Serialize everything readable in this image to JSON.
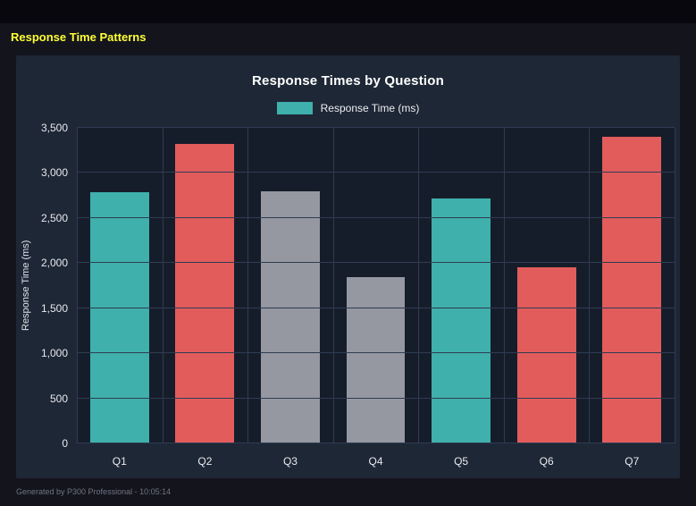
{
  "page": {
    "heading": "Response Time Patterns",
    "footer": "Generated by P300 Professional - 10:05:14"
  },
  "colors": {
    "background": "#14141d",
    "panel": "#1e2736",
    "plot_bg": "#161d2a",
    "grid": "#2e3c52",
    "heading": "#ffff33",
    "teal": "#3fb0ab",
    "red": "#e25c5c",
    "gray": "#9598a0",
    "muted": "#6f7480"
  },
  "chart_data": {
    "type": "bar",
    "title": "Response Times by Question",
    "legend": [
      {
        "label": "Response Time (ms)",
        "color": "#3fb0ab"
      }
    ],
    "legend_position": "top",
    "categories": [
      "Q1",
      "Q2",
      "Q3",
      "Q4",
      "Q5",
      "Q6",
      "Q7"
    ],
    "values": [
      2790,
      3320,
      2800,
      1840,
      2720,
      1950,
      3400
    ],
    "bar_colors": [
      "#3fb0ab",
      "#e25c5c",
      "#9598a0",
      "#9598a0",
      "#3fb0ab",
      "#e25c5c",
      "#e25c5c"
    ],
    "xlabel": "",
    "ylabel": "Response Time (ms)",
    "ylim": [
      0,
      3500
    ],
    "yticks": [
      0,
      500,
      1000,
      1500,
      2000,
      2500,
      3000,
      3500
    ],
    "grid": true
  }
}
